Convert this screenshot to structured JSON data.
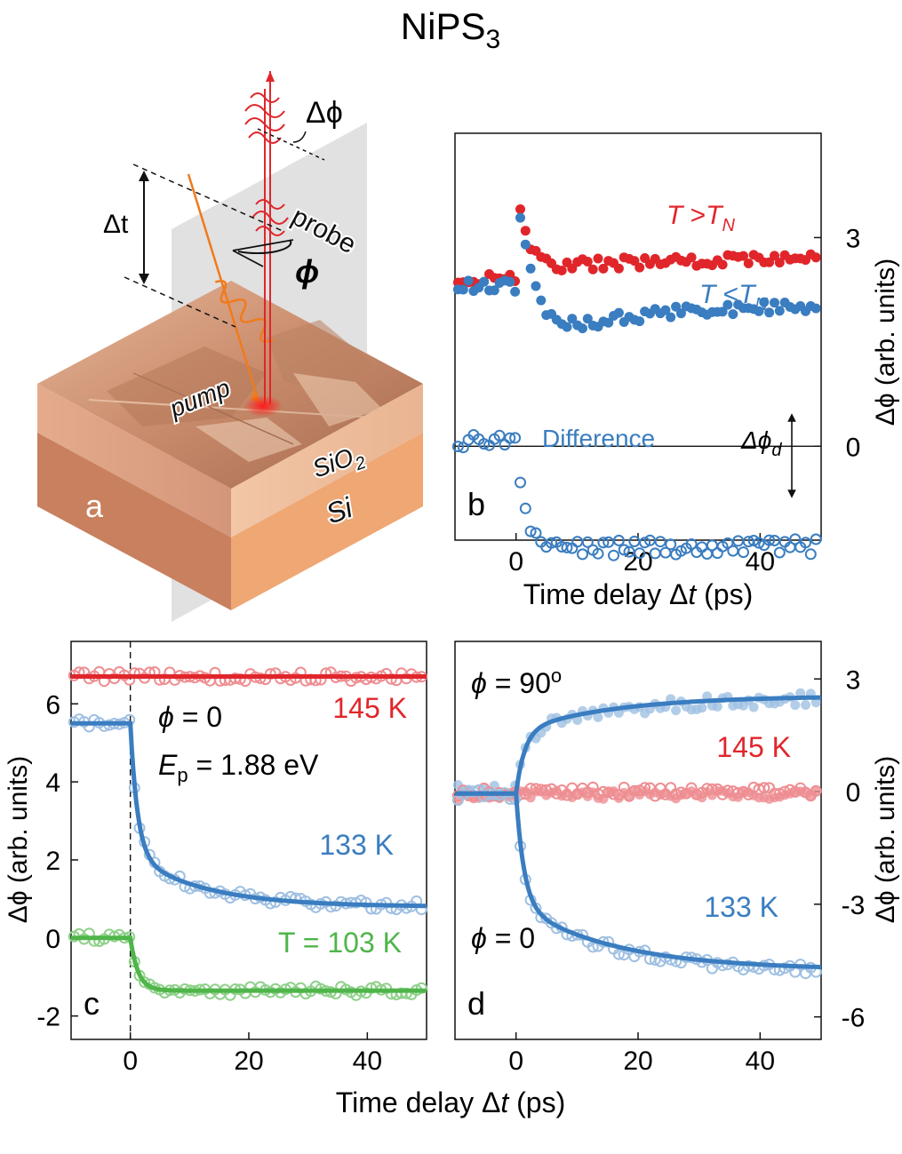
{
  "figure": {
    "title": "NiPS",
    "title_sub": "3",
    "xlabel_prefix": "Time delay ",
    "xlabel_delta": "Δ",
    "xlabel_var": "t",
    "xlabel_suffix": " (ps)"
  },
  "colors": {
    "red": "#e0262b",
    "blue": "#3a7dc0",
    "green": "#4fb54a",
    "red_light": "#ee8e92",
    "blue_light": "#9fc0e2",
    "green_light": "#8fd08a",
    "orange": "#f07a1c"
  },
  "panel_a": {
    "letter": "a",
    "delta_phi": "Δϕ",
    "delta_t": "Δt",
    "probe": "probe",
    "phi": "ϕ",
    "pump": "pump",
    "sio2": "SiO",
    "sio2_sub": "2",
    "si": "Si"
  },
  "chart_data": [
    {
      "panel": "b",
      "type": "scatter",
      "xlim": [
        -10,
        50
      ],
      "ylim": [
        -1.35,
        4.5
      ],
      "xticks": [
        0,
        20,
        40
      ],
      "yticks": [
        0,
        3
      ],
      "tick_labels_y_side": "right",
      "ylabel": "Δϕ (arb. units)",
      "xlabel": "Time delay Δt (ps)",
      "hline": 0,
      "labels": {
        "hot_T": "T",
        "hot_gt": " >",
        "hot_TN": "T",
        "hot_N": "N",
        "cold_T": "T",
        "cold_lt": " <",
        "cold_TN": "T",
        "cold_N": "N",
        "difference": "Difference",
        "delta_phi_d": "Δϕ",
        "delta_phi_d_sub": "d",
        "letter": "b"
      },
      "series": [
        {
          "name": "T > TN",
          "style": "filled",
          "color": "red",
          "model": {
            "base": 2.4,
            "step": 0.15,
            "peak": 3.9,
            "tau_peak": 1.5,
            "tail": 0.15,
            "tau_tail": 20,
            "noise": 0.08
          }
        },
        {
          "name": "T < TN",
          "style": "filled",
          "color": "blue",
          "model": {
            "base": 2.3,
            "step": -0.8,
            "peak": 3.8,
            "tau_peak": 2.0,
            "tail": 0.55,
            "tau_tail": 18,
            "noise": 0.09
          }
        },
        {
          "name": "Difference",
          "style": "open",
          "color": "blue",
          "model": {
            "base": 0.05,
            "step": -1.5,
            "tau_rise": 1.5,
            "tail": 0.0,
            "tau_tail": 20,
            "noise": 0.12
          }
        }
      ]
    },
    {
      "panel": "c",
      "type": "scatter+line",
      "xlim": [
        -10,
        50
      ],
      "ylim": [
        -2.6,
        7.6
      ],
      "xticks": [
        0,
        20,
        40
      ],
      "yticks": [
        -2,
        0,
        2,
        4,
        6
      ],
      "ylabel": "Δϕ (arb. units)",
      "vline": 0,
      "labels": {
        "phi": "ϕ",
        "phi_eq": " = 0",
        "ep_E": "E",
        "ep_sub": "p",
        "ep_val": " = 1.88 eV",
        "t145": "145 K",
        "t133": "133 K",
        "t103": "T = 103 K",
        "letter": "c"
      },
      "series": [
        {
          "name": "145 K",
          "color": "red",
          "model": {
            "base": 6.7,
            "step": 0.0,
            "tau_rise": 1,
            "tail": 0,
            "tau_tail": 10,
            "noise": 0.12
          }
        },
        {
          "name": "133 K",
          "color": "blue",
          "model": {
            "base": 5.5,
            "step": -3.35,
            "tau_rise": 1.2,
            "tail": -1.35,
            "tau_tail": 12,
            "noise": 0.12
          }
        },
        {
          "name": "T = 103 K",
          "color": "green",
          "model": {
            "base": 0.0,
            "step": -1.35,
            "tau_rise": 1.3,
            "tail": 0,
            "tau_tail": 10,
            "noise": 0.12
          }
        }
      ]
    },
    {
      "panel": "d",
      "type": "scatter+line",
      "xlim": [
        -10,
        50
      ],
      "ylim": [
        -6.6,
        4.0
      ],
      "xticks": [
        0,
        20,
        40
      ],
      "yticks": [
        -6,
        -3,
        0,
        3
      ],
      "tick_labels_y_side": "right",
      "ylabel": "Δϕ (arb. units)",
      "labels": {
        "phi90": "ϕ",
        "phi90_eq": " = 90",
        "phi90_deg": "o",
        "phi0": "ϕ",
        "phi0_eq": " = 0",
        "t145": "145 K",
        "t133": "133 K",
        "letter": "d"
      },
      "series": [
        {
          "name": "133 K, ϕ = 90°",
          "style": "filled",
          "color": "blue_light",
          "model": {
            "base": 0.0,
            "step": 1.6,
            "tau_rise": 1.5,
            "tail": 0.9,
            "tau_tail": 16,
            "noise": 0.18
          }
        },
        {
          "name": "145 K, ϕ = 90°",
          "style": "filled",
          "color": "red_light",
          "model": {
            "base": -0.1,
            "step": 0,
            "tau_rise": 1,
            "tail": 0,
            "tau_tail": 10,
            "noise": 0.12
          }
        },
        {
          "name": "145 K, ϕ = 0",
          "style": "open",
          "color": "red_light",
          "model": {
            "base": 0.0,
            "step": 0,
            "tau_rise": 1,
            "tail": 0,
            "tau_tail": 10,
            "noise": 0.12
          }
        },
        {
          "name": "133 K, ϕ = 0",
          "style": "open",
          "color": "blue_light",
          "model": {
            "base": -0.1,
            "step": -3.0,
            "tau_rise": 1.3,
            "tail": -1.7,
            "tau_tail": 16,
            "noise": 0.15
          }
        }
      ],
      "fits": [
        {
          "name": "fit ϕ = 90°",
          "color": "blue",
          "model": {
            "base": -0.05,
            "step": 1.65,
            "tau_rise": 1.4,
            "tail": 0.95,
            "tau_tail": 16
          }
        },
        {
          "name": "fit ϕ = 0",
          "color": "blue",
          "model": {
            "base": -0.05,
            "step": -2.95,
            "tau_rise": 1.3,
            "tail": -1.75,
            "tau_tail": 16
          }
        }
      ]
    }
  ]
}
